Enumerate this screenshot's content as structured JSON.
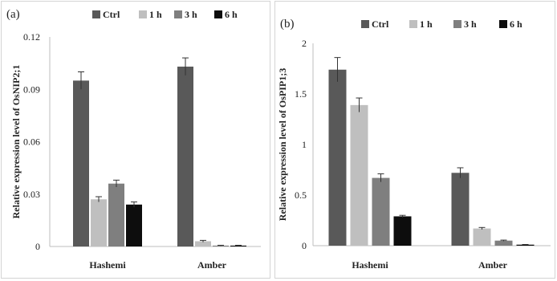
{
  "chart_data": [
    {
      "panel_label": "(a)",
      "type": "bar",
      "categories": [
        "Hashemi",
        "Amber"
      ],
      "series": [
        {
          "name": "Ctrl",
          "color": "#595959",
          "values": [
            0.095,
            0.103
          ],
          "errors": [
            0.005,
            0.005
          ]
        },
        {
          "name": "1 h",
          "color": "#bfbfbf",
          "values": [
            0.027,
            0.003
          ],
          "errors": [
            0.0015,
            0.0005
          ]
        },
        {
          "name": "3 h",
          "color": "#7f7f7f",
          "values": [
            0.036,
            0.0005
          ],
          "errors": [
            0.002,
            0.0002
          ]
        },
        {
          "name": "6 h",
          "color": "#0d0d0d",
          "values": [
            0.024,
            0.0005
          ],
          "errors": [
            0.0015,
            0.0002
          ]
        }
      ],
      "ylabel": "Relative expression level of OsNIP2;1",
      "ylim": [
        0,
        0.12
      ],
      "yticks": [
        "0",
        "0.03",
        "0.06",
        "0.09",
        "0.12"
      ],
      "legend_position": "top",
      "grid": false
    },
    {
      "panel_label": "(b)",
      "type": "bar",
      "categories": [
        "Hashemi",
        "Amber"
      ],
      "series": [
        {
          "name": "Ctrl",
          "color": "#595959",
          "values": [
            1.74,
            0.72
          ],
          "errors": [
            0.12,
            0.05
          ]
        },
        {
          "name": "1 h",
          "color": "#bfbfbf",
          "values": [
            1.39,
            0.17
          ],
          "errors": [
            0.07,
            0.01
          ]
        },
        {
          "name": "3 h",
          "color": "#7f7f7f",
          "values": [
            0.67,
            0.05
          ],
          "errors": [
            0.04,
            0.005
          ]
        },
        {
          "name": "6 h",
          "color": "#0d0d0d",
          "values": [
            0.29,
            0.01
          ],
          "errors": [
            0.01,
            0.002
          ]
        }
      ],
      "ylabel": "Relative expression level of OsPIP1;3",
      "ylim": [
        0,
        2
      ],
      "yticks": [
        "0",
        "0.5",
        "1",
        "1.5",
        "2"
      ],
      "legend_position": "top",
      "grid": false
    }
  ]
}
